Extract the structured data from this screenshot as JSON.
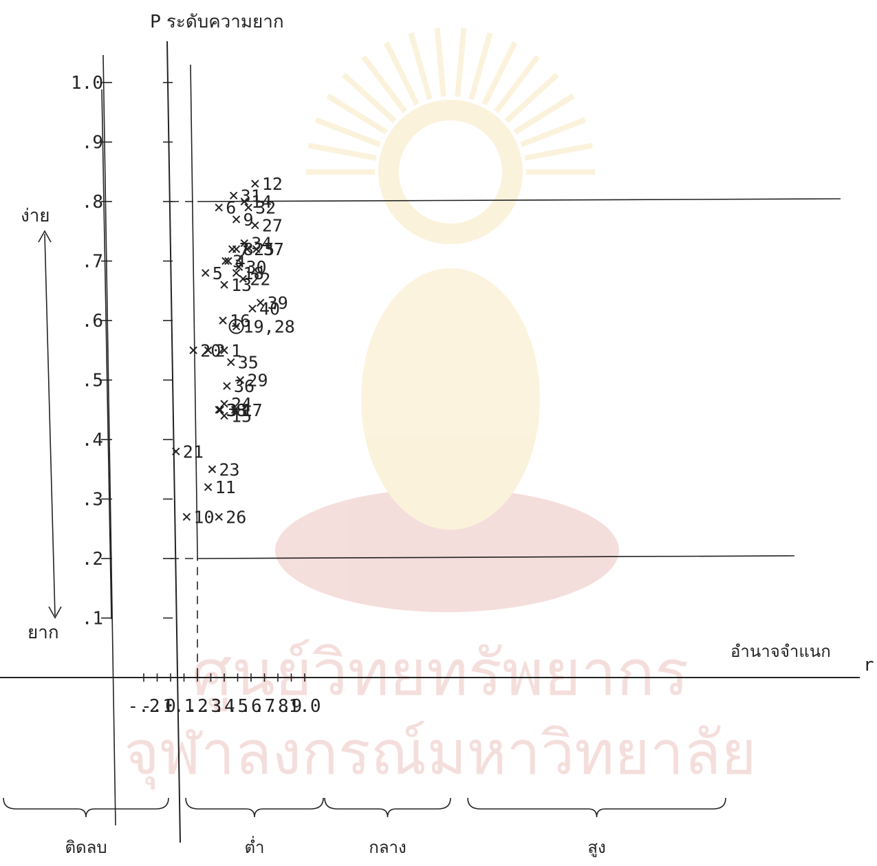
{
  "chart_data": {
    "type": "scatter",
    "y_axis_title": "P ระดับความยาก",
    "x_axis_title": "อำนาจจำแนก",
    "x_axis_symbol": "r",
    "easy_label": "ง่าย",
    "hard_label": "ยาก",
    "xlim": [
      -0.2,
      1.0
    ],
    "ylim": [
      0.0,
      1.0
    ],
    "x_ticks": [
      {
        "v": -0.2,
        "t": "-.2"
      },
      {
        "v": -0.1,
        "t": "-.1"
      },
      {
        "v": 0.0,
        "t": "0"
      },
      {
        "v": 0.1,
        "t": ".1"
      },
      {
        "v": 0.2,
        "t": ".2"
      },
      {
        "v": 0.3,
        "t": ".3"
      },
      {
        "v": 0.4,
        "t": ".4"
      },
      {
        "v": 0.5,
        "t": ".5"
      },
      {
        "v": 0.6,
        "t": ".6"
      },
      {
        "v": 0.7,
        "t": ".7"
      },
      {
        "v": 0.8,
        "t": ".8"
      },
      {
        "v": 0.9,
        "t": ".9"
      },
      {
        "v": 1.0,
        "t": "1.0"
      }
    ],
    "y_ticks": [
      {
        "v": 0.1,
        "t": ".1"
      },
      {
        "v": 0.2,
        "t": ".2"
      },
      {
        "v": 0.3,
        "t": ".3"
      },
      {
        "v": 0.4,
        "t": ".4"
      },
      {
        "v": 0.5,
        "t": ".5"
      },
      {
        "v": 0.6,
        "t": ".6"
      },
      {
        "v": 0.7,
        "t": ".7"
      },
      {
        "v": 0.8,
        "t": ".8"
      },
      {
        "v": 0.9,
        "t": ".9"
      },
      {
        "v": 1.0,
        "t": "1.0"
      }
    ],
    "reference_lines": {
      "x": [
        0.2
      ],
      "y": [
        0.2,
        0.8
      ]
    },
    "discrimination_groups": [
      {
        "label": "ติดลบ",
        "range": [
          -0.2,
          0.0
        ]
      },
      {
        "label": "ต่ำ",
        "range": [
          0.0,
          0.2
        ]
      },
      {
        "label": "กลาง",
        "range": [
          0.2,
          0.4
        ]
      },
      {
        "label": "สูง",
        "range": [
          0.4,
          0.8
        ]
      }
    ],
    "points": [
      {
        "label": "1",
        "x": 0.4,
        "y": 0.55
      },
      {
        "label": "2",
        "x": 0.28,
        "y": 0.55
      },
      {
        "label": "3",
        "x": 0.41,
        "y": 0.7
      },
      {
        "label": "4",
        "x": 0.43,
        "y": 0.7
      },
      {
        "label": "5",
        "x": 0.26,
        "y": 0.68
      },
      {
        "label": "6",
        "x": 0.36,
        "y": 0.79
      },
      {
        "label": "7",
        "x": 0.46,
        "y": 0.72
      },
      {
        "label": "8",
        "x": 0.49,
        "y": 0.72
      },
      {
        "label": "9",
        "x": 0.49,
        "y": 0.77
      },
      {
        "label": "10",
        "x": 0.12,
        "y": 0.27
      },
      {
        "label": "11",
        "x": 0.28,
        "y": 0.32
      },
      {
        "label": "12",
        "x": 0.63,
        "y": 0.83
      },
      {
        "label": "13",
        "x": 0.4,
        "y": 0.66
      },
      {
        "label": "14",
        "x": 0.55,
        "y": 0.8
      },
      {
        "label": "15",
        "x": 0.4,
        "y": 0.44
      },
      {
        "label": "16",
        "x": 0.39,
        "y": 0.6
      },
      {
        "label": "17",
        "x": 0.48,
        "y": 0.45
      },
      {
        "label": "18",
        "x": 0.49,
        "y": 0.68
      },
      {
        "label": "19,28",
        "x": 0.49,
        "y": 0.59
      },
      {
        "label": "20",
        "x": 0.17,
        "y": 0.55
      },
      {
        "label": "21",
        "x": 0.04,
        "y": 0.38
      },
      {
        "label": "22",
        "x": 0.54,
        "y": 0.67
      },
      {
        "label": "23",
        "x": 0.31,
        "y": 0.35
      },
      {
        "label": "24",
        "x": 0.4,
        "y": 0.46
      },
      {
        "label": "25",
        "x": 0.57,
        "y": 0.72
      },
      {
        "label": "26",
        "x": 0.36,
        "y": 0.27
      },
      {
        "label": "27",
        "x": 0.63,
        "y": 0.76
      },
      {
        "label": "29",
        "x": 0.52,
        "y": 0.5
      },
      {
        "label": "30",
        "x": 0.51,
        "y": 0.69
      },
      {
        "label": "31",
        "x": 0.47,
        "y": 0.81
      },
      {
        "label": "32",
        "x": 0.58,
        "y": 0.79
      },
      {
        "label": "33",
        "x": 0.37,
        "y": 0.45
      },
      {
        "label": "34",
        "x": 0.55,
        "y": 0.73
      },
      {
        "label": "35",
        "x": 0.45,
        "y": 0.53
      },
      {
        "label": "36",
        "x": 0.42,
        "y": 0.49
      },
      {
        "label": "37",
        "x": 0.64,
        "y": 0.72
      },
      {
        "label": "38",
        "x": 0.36,
        "y": 0.45
      },
      {
        "label": "39",
        "x": 0.67,
        "y": 0.63
      },
      {
        "label": "40",
        "x": 0.61,
        "y": 0.62
      }
    ]
  },
  "watermark": {
    "line1": "ศูนย์วิทยทรัพยากร",
    "line2": "จุฬาลงกรณ์มหาวิทยาลัย"
  },
  "colors": {
    "ink": "#222222",
    "watermark_gold": "#e7b52a",
    "watermark_red": "#c0392b"
  }
}
